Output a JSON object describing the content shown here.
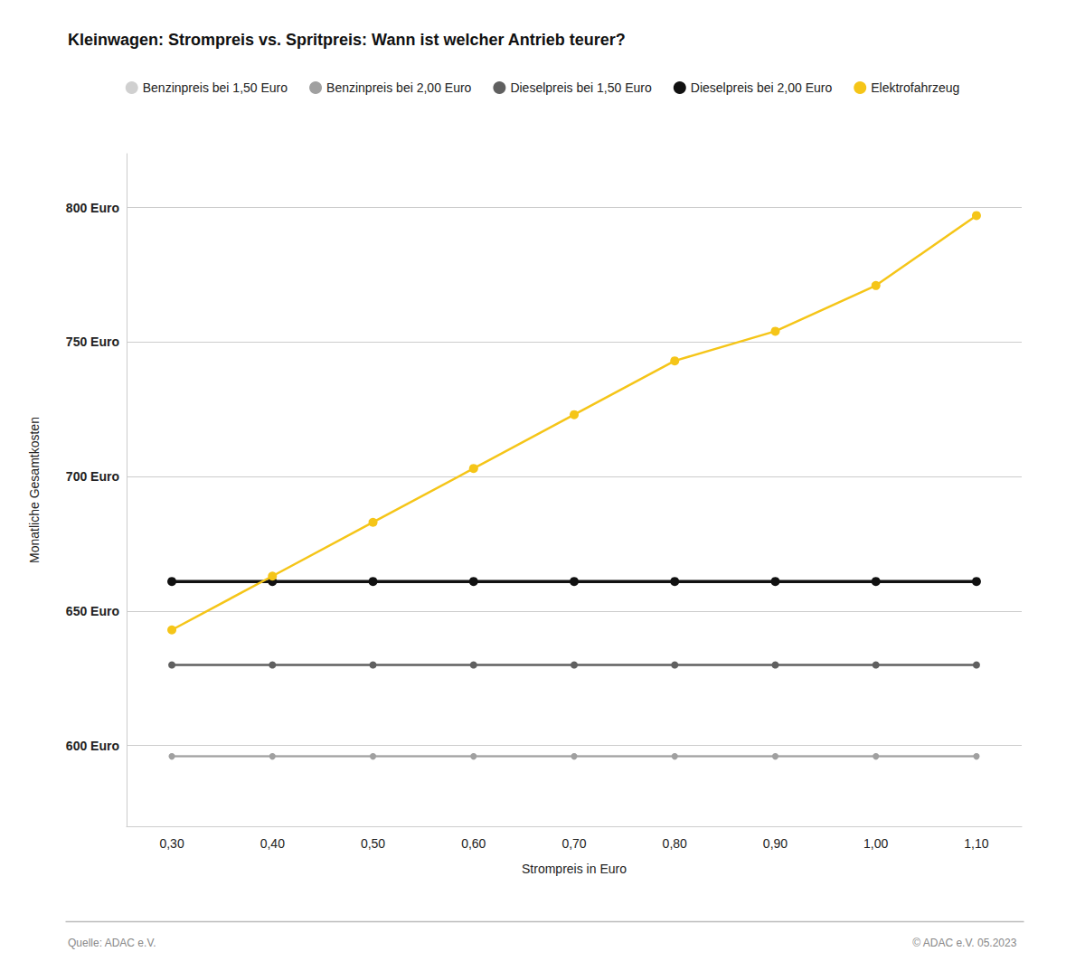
{
  "chart_data": {
    "type": "line",
    "title": "Kleinwagen: Strompreis vs. Spritpreis: Wann ist welcher Antrieb teurer?",
    "xlabel": "Strompreis in Euro",
    "ylabel": "Monatliche Gesamtkosten",
    "x": [
      0.3,
      0.4,
      0.5,
      0.6,
      0.7,
      0.8,
      0.9,
      1.0,
      1.1
    ],
    "xlim": [
      0.255,
      1.145
    ],
    "xticks": [
      {
        "value": 0.3,
        "label": "0,30"
      },
      {
        "value": 0.4,
        "label": "0,40"
      },
      {
        "value": 0.5,
        "label": "0,50"
      },
      {
        "value": 0.6,
        "label": "0,60"
      },
      {
        "value": 0.7,
        "label": "0,70"
      },
      {
        "value": 0.8,
        "label": "0,80"
      },
      {
        "value": 0.9,
        "label": "0,90"
      },
      {
        "value": 1.0,
        "label": "1,00"
      },
      {
        "value": 1.1,
        "label": "1,10"
      }
    ],
    "ylim": [
      570,
      820
    ],
    "yticks": [
      {
        "value": 600,
        "label": "600 Euro"
      },
      {
        "value": 650,
        "label": "650 Euro"
      },
      {
        "value": 700,
        "label": "700 Euro"
      },
      {
        "value": 750,
        "label": "750 Euro"
      },
      {
        "value": 800,
        "label": "800 Euro"
      }
    ],
    "grid": true,
    "legend": "top",
    "marker": "circle",
    "series": [
      {
        "name": "Benzinpreis bei 1,50 Euro",
        "color": "#d0d0d0",
        "values": [
          596,
          596,
          596,
          596,
          596,
          596,
          596,
          596,
          596
        ]
      },
      {
        "name": "Benzinpreis bei 2,00 Euro",
        "color": "#a0a0a0",
        "values": [
          596,
          596,
          596,
          596,
          596,
          596,
          596,
          596,
          596
        ]
      },
      {
        "name": "Dieselpreis bei 1,50 Euro",
        "color": "#606060",
        "values": [
          630,
          630,
          630,
          630,
          630,
          630,
          630,
          630,
          630
        ]
      },
      {
        "name": "Dieselpreis bei 2,00 Euro",
        "color": "#111111",
        "values": [
          661,
          661,
          661,
          661,
          661,
          661,
          661,
          661,
          661
        ]
      },
      {
        "name": "Elektrofahrzeug",
        "color": "#f5c518",
        "values": [
          643,
          663,
          683,
          703,
          723,
          743,
          754,
          771,
          797
        ]
      }
    ],
    "annotations": [
      "Quelle: ADAC e.V.",
      "© ADAC e.V. 05.2023"
    ]
  }
}
